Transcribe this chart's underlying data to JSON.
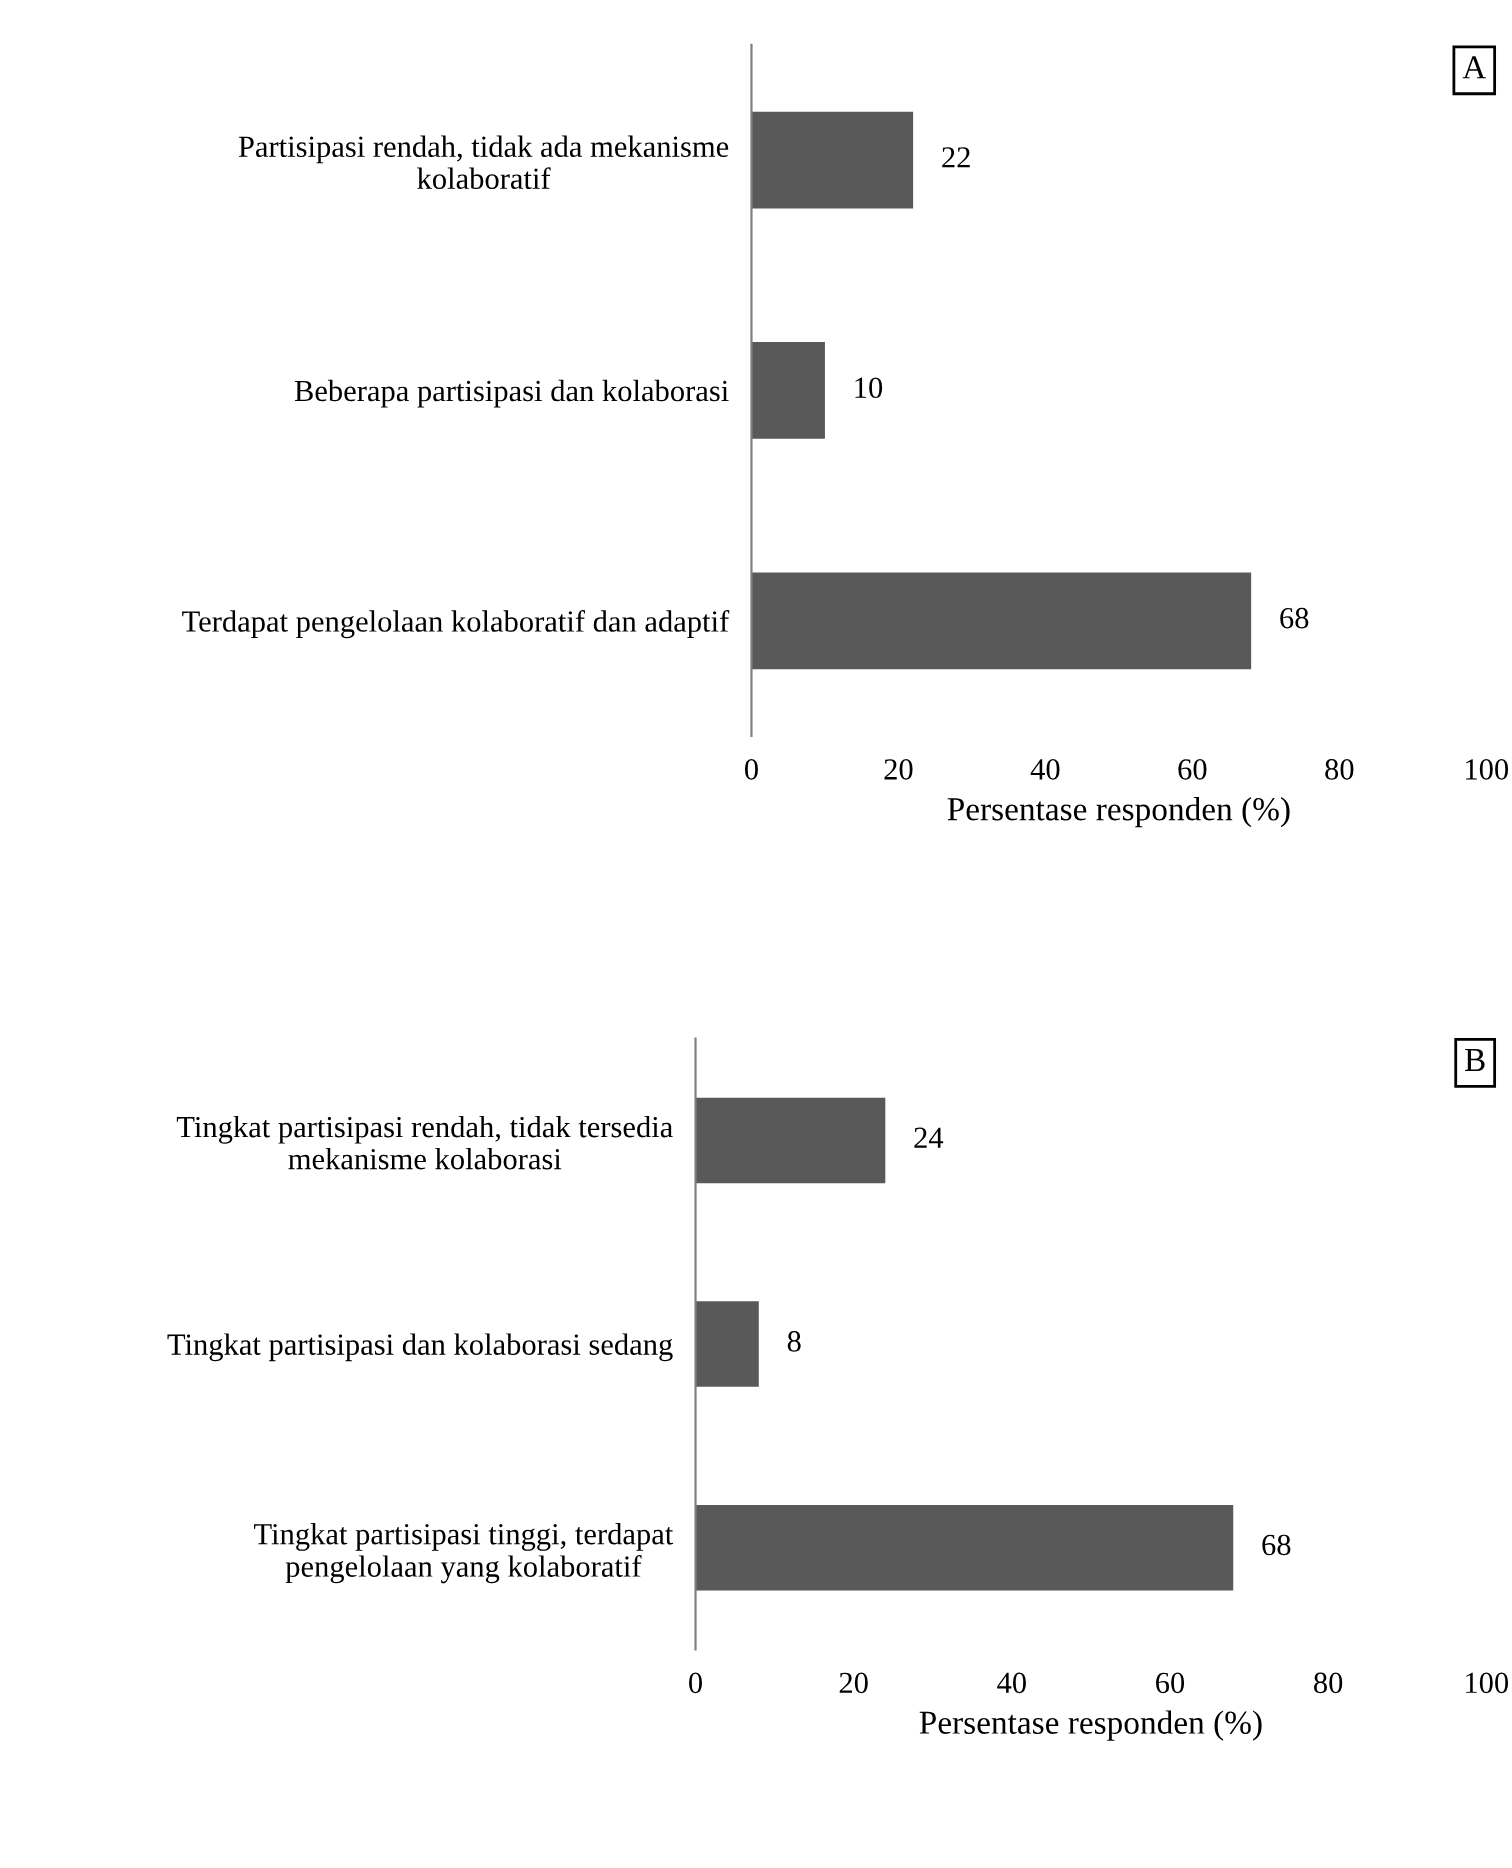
{
  "chart_data": [
    {
      "type": "bar",
      "orientation": "horizontal",
      "title": "A",
      "xlabel": "Persentase responden (%)",
      "categories": [
        "Partisipasi rendah, tidak ada mekanisme\nkolaboratif",
        "Beberapa partisipasi dan kolaborasi",
        "Terdapat pengelolaan kolaboratif dan adaptif"
      ],
      "values": [
        22,
        10,
        68
      ],
      "color": "#595959",
      "xlim": [
        0,
        100
      ],
      "xticks": [
        0,
        20,
        40,
        60,
        80,
        100
      ],
      "data_labels": true,
      "grid": false,
      "legend": false
    },
    {
      "type": "bar",
      "orientation": "horizontal",
      "title": "B",
      "xlabel": "Persentase responden (%)",
      "categories": [
        "Tingkat partisipasi rendah, tidak tersedia\nmekanisme kolaborasi",
        "Tingkat partisipasi dan kolaborasi sedang",
        "Tingkat partisipasi tinggi, terdapat\npengelolaan yang kolaboratif"
      ],
      "values": [
        24,
        8,
        68
      ],
      "color": "#595959",
      "xlim": [
        0,
        100
      ],
      "xticks": [
        0,
        20,
        40,
        60,
        80,
        100
      ],
      "data_labels": true,
      "grid": false,
      "legend": false
    }
  ]
}
